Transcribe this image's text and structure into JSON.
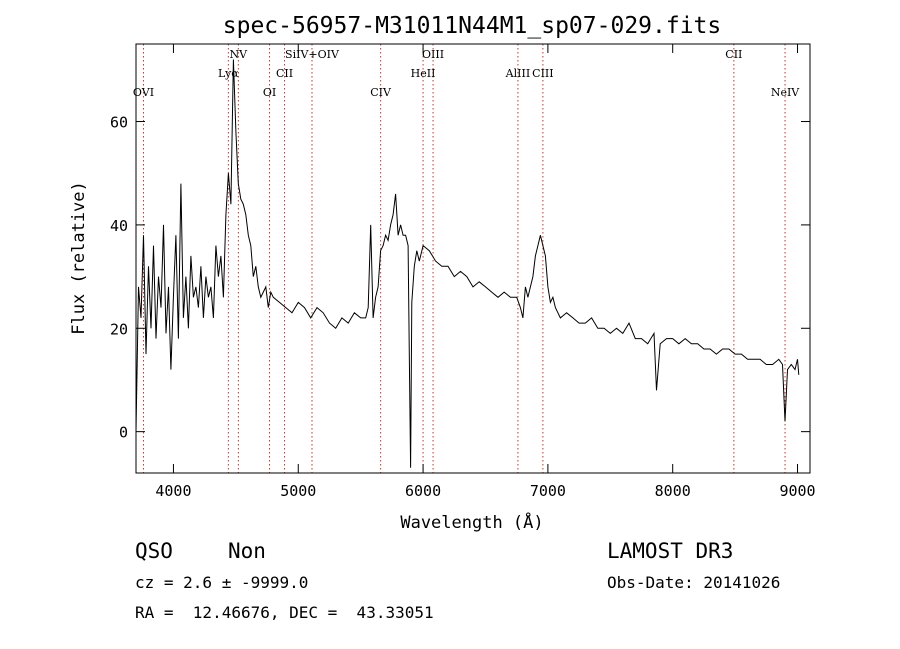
{
  "chart_data": {
    "type": "line",
    "title": "spec-56957-M31011N44M1_sp07-029.fits",
    "xlabel": "Wavelength (Å)",
    "ylabel": "Flux (relative)",
    "xlim": [
      3700,
      9100
    ],
    "ylim": [
      -8,
      75
    ],
    "x_ticks": [
      4000,
      5000,
      6000,
      7000,
      8000,
      9000
    ],
    "y_ticks": [
      0,
      20,
      40,
      60
    ],
    "grid": false,
    "legend": "none",
    "series": [
      {
        "x": [
          3700,
          3720,
          3740,
          3760,
          3780,
          3800,
          3820,
          3840,
          3860,
          3880,
          3900,
          3920,
          3940,
          3960,
          3980,
          4000,
          4020,
          4040,
          4060,
          4080,
          4100,
          4120,
          4140,
          4160,
          4180,
          4200,
          4220,
          4240,
          4260,
          4280,
          4300,
          4320,
          4340,
          4360,
          4380,
          4400,
          4420,
          4440,
          4460,
          4480,
          4500,
          4520,
          4540,
          4560,
          4580,
          4600,
          4620,
          4640,
          4660,
          4680,
          4700,
          4720,
          4740,
          4760,
          4780,
          4800,
          4850,
          4900,
          4950,
          5000,
          5050,
          5100,
          5150,
          5200,
          5250,
          5300,
          5350,
          5400,
          5450,
          5500,
          5540,
          5560,
          5580,
          5600,
          5620,
          5640,
          5660,
          5680,
          5700,
          5720,
          5740,
          5760,
          5780,
          5800,
          5820,
          5840,
          5860,
          5880,
          5890,
          5900,
          5910,
          5930,
          5950,
          5970,
          6000,
          6050,
          6100,
          6150,
          6200,
          6250,
          6300,
          6350,
          6400,
          6450,
          6500,
          6550,
          6600,
          6650,
          6700,
          6750,
          6780,
          6800,
          6820,
          6840,
          6860,
          6880,
          6900,
          6920,
          6940,
          6960,
          6980,
          7000,
          7020,
          7040,
          7060,
          7080,
          7100,
          7150,
          7200,
          7250,
          7300,
          7350,
          7400,
          7450,
          7500,
          7550,
          7600,
          7650,
          7700,
          7750,
          7800,
          7850,
          7870,
          7900,
          7950,
          8000,
          8050,
          8100,
          8150,
          8200,
          8250,
          8300,
          8350,
          8400,
          8450,
          8500,
          8550,
          8600,
          8650,
          8700,
          8750,
          8800,
          8850,
          8880,
          8900,
          8920,
          8950,
          8980,
          9000,
          9010
        ],
        "y": [
          0,
          28,
          22,
          38,
          15,
          32,
          20,
          36,
          18,
          30,
          24,
          40,
          19,
          28,
          12,
          26,
          38,
          18,
          48,
          22,
          30,
          20,
          34,
          26,
          28,
          24,
          32,
          22,
          30,
          26,
          28,
          22,
          36,
          30,
          34,
          26,
          42,
          50,
          44,
          72,
          58,
          48,
          45,
          44,
          42,
          38,
          36,
          30,
          32,
          28,
          26,
          27,
          28,
          24,
          27,
          26,
          25,
          24,
          23,
          25,
          24,
          22,
          24,
          23,
          21,
          20,
          22,
          21,
          23,
          22,
          22,
          24,
          40,
          22,
          26,
          28,
          35,
          36,
          38,
          37,
          40,
          42,
          46,
          38,
          40,
          38,
          38,
          36,
          15,
          -7,
          25,
          32,
          35,
          33,
          36,
          35,
          33,
          32,
          32,
          30,
          31,
          30,
          28,
          29,
          28,
          27,
          26,
          27,
          26,
          26,
          24,
          22,
          28,
          26,
          28,
          30,
          34,
          36,
          38,
          36,
          34,
          28,
          25,
          26,
          24,
          23,
          22,
          23,
          22,
          21,
          21,
          22,
          20,
          20,
          19,
          20,
          19,
          21,
          18,
          18,
          17,
          19,
          8,
          17,
          18,
          18,
          17,
          18,
          17,
          17,
          16,
          16,
          15,
          16,
          16,
          15,
          15,
          14,
          14,
          14,
          13,
          13,
          14,
          13,
          2,
          12,
          13,
          12,
          14,
          11
        ]
      }
    ],
    "lines": [
      {
        "label": "OVI",
        "x": 3760
      },
      {
        "label": "Lyα",
        "x": 4440
      },
      {
        "label": "NV",
        "x": 4520
      },
      {
        "label": "OI",
        "x": 4770
      },
      {
        "label": "CII",
        "x": 4890
      },
      {
        "label": "SiIV+OIV",
        "x": 5110
      },
      {
        "label": "CIV",
        "x": 5660
      },
      {
        "label": "HeII",
        "x": 6000
      },
      {
        "label": "OIII",
        "x": 6080
      },
      {
        "label": "AlIII",
        "x": 6760
      },
      {
        "label": "CIII",
        "x": 6960
      },
      {
        "label": "CII",
        "x": 8490
      },
      {
        "label": "NeIV",
        "x": 8900
      }
    ]
  },
  "info": {
    "class": "QSO",
    "subclass": "Non",
    "cz": "cz = 2.6 ± -9999.0",
    "coords": "RA =  12.46676, DEC =  43.33051",
    "survey": "LAMOST DR3",
    "obs_date": "Obs-Date: 20141026"
  }
}
